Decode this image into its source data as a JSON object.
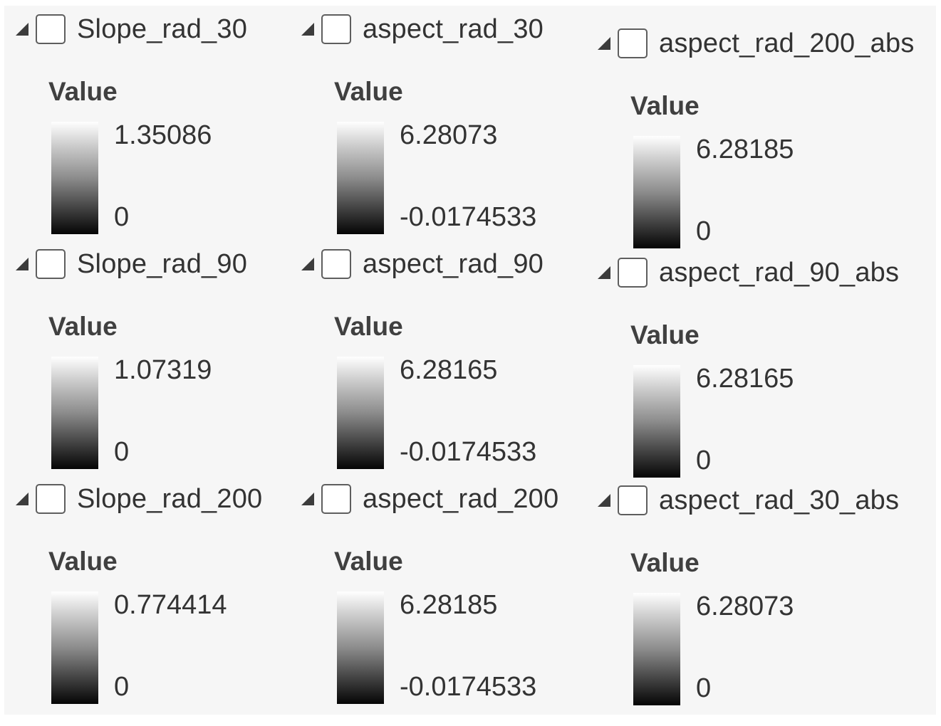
{
  "layers": [
    {
      "name": "Slope_rad_30",
      "legend_title": "Value",
      "max_label": "1.35086",
      "min_label": "0"
    },
    {
      "name": "aspect_rad_30",
      "legend_title": "Value",
      "max_label": "6.28073",
      "min_label": "-0.0174533"
    },
    {
      "name": "aspect_rad_200_abs",
      "legend_title": "Value",
      "max_label": "6.28185",
      "min_label": "0"
    },
    {
      "name": "Slope_rad_90",
      "legend_title": "Value",
      "max_label": "1.07319",
      "min_label": "0"
    },
    {
      "name": "aspect_rad_90",
      "legend_title": "Value",
      "max_label": "6.28165",
      "min_label": "-0.0174533"
    },
    {
      "name": "aspect_rad_90_abs",
      "legend_title": "Value",
      "max_label": "6.28165",
      "min_label": "0"
    },
    {
      "name": "Slope_rad_200",
      "legend_title": "Value",
      "max_label": "0.774414",
      "min_label": "0"
    },
    {
      "name": "aspect_rad_200",
      "legend_title": "Value",
      "max_label": "6.28185",
      "min_label": "-0.0174533"
    },
    {
      "name": "aspect_rad_30_abs",
      "legend_title": "Value",
      "max_label": "6.28073",
      "min_label": "0"
    }
  ],
  "colors": {
    "panel_background": "#f6f6f6",
    "ramp_high": "#ffffff",
    "ramp_low": "#050505",
    "text": "#333333"
  },
  "icons": {
    "expand": "collapse-triangle-icon",
    "visibility": "checkbox"
  }
}
